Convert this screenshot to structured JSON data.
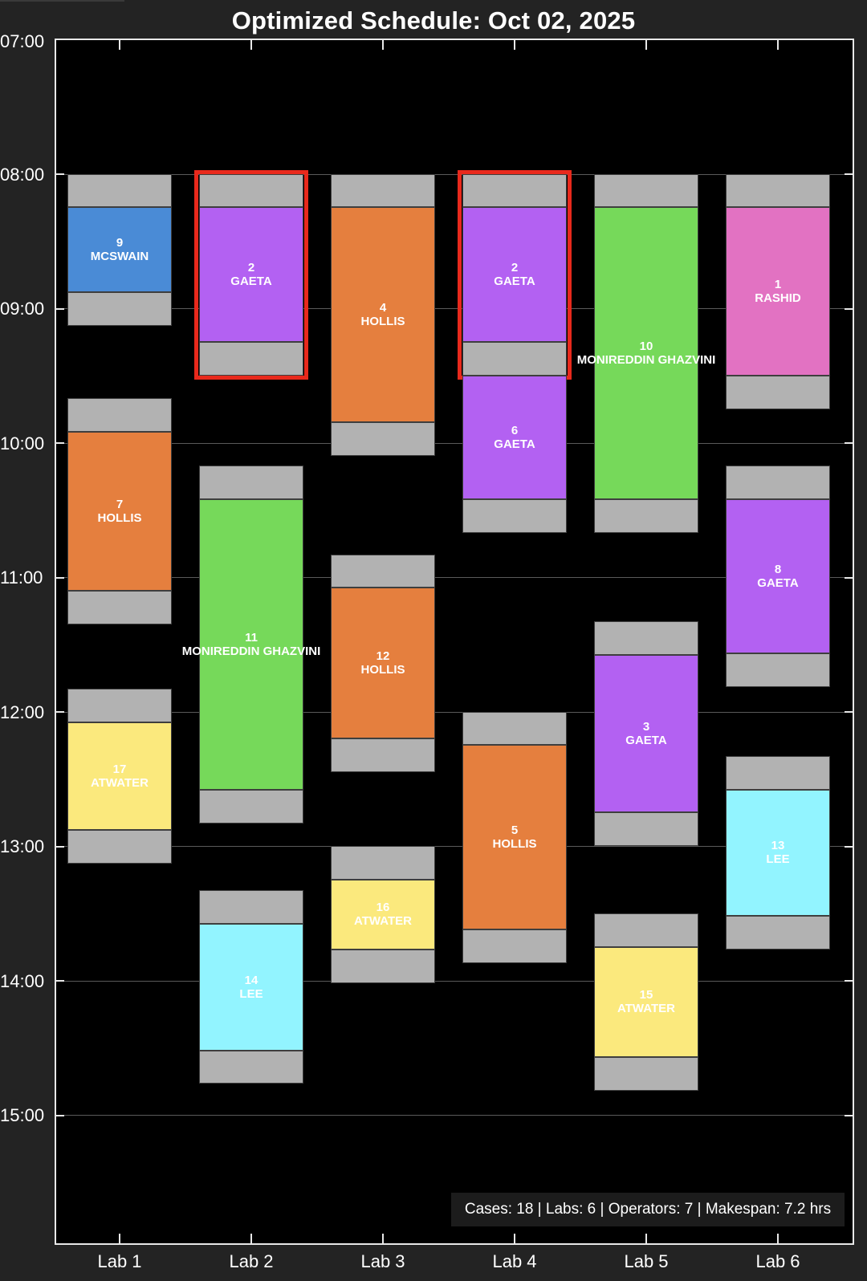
{
  "title": "Optimized Schedule: Oct 02, 2025",
  "stats_text": "Cases: 18 | Labs: 6 | Operators: 7 | Makespan: 7.2 hrs",
  "chart_data": {
    "type": "gantt",
    "y_axis": {
      "start_hour": 7.0,
      "end_hour": 15.8,
      "ticks": [
        "07:00",
        "08:00",
        "09:00",
        "10:00",
        "11:00",
        "12:00",
        "13:00",
        "14:00",
        "15:00"
      ]
    },
    "labs": [
      "Lab 1",
      "Lab 2",
      "Lab 3",
      "Lab 4",
      "Lab 5",
      "Lab 6"
    ],
    "colors": {
      "MCSWAIN": "#4a8bd6",
      "GAETA": "#b361f2",
      "HOLLIS": "#e57f3e",
      "MONIREDDIN GHAZVINI": "#76d95a",
      "RASHID": "#e272c2",
      "ATWATER": "#fbe97d",
      "LEE": "#92f4ff",
      "turnover": "#b2b2b2",
      "highlight": "#e8291c"
    },
    "cases": [
      {
        "id": "9",
        "operator": "MCSWAIN",
        "lab": 1,
        "setup_start": 8.0,
        "start": 8.25,
        "end": 8.88,
        "post_end": 9.13
      },
      {
        "id": "7",
        "operator": "HOLLIS",
        "lab": 1,
        "setup_start": 9.67,
        "start": 9.92,
        "end": 11.1,
        "post_end": 11.35
      },
      {
        "id": "17",
        "operator": "ATWATER",
        "lab": 1,
        "setup_start": 11.83,
        "start": 12.08,
        "end": 12.88,
        "post_end": 13.13
      },
      {
        "id": "2",
        "operator": "GAETA",
        "lab": 2,
        "setup_start": 8.0,
        "start": 8.25,
        "end": 9.25,
        "post_end": 9.5,
        "highlight": true
      },
      {
        "id": "11",
        "operator": "MONIREDDIN GHAZVINI",
        "lab": 2,
        "setup_start": 10.17,
        "start": 10.42,
        "end": 12.58,
        "post_end": 12.83
      },
      {
        "id": "14",
        "operator": "LEE",
        "lab": 2,
        "setup_start": 13.33,
        "start": 13.58,
        "end": 14.52,
        "post_end": 14.77
      },
      {
        "id": "4",
        "operator": "HOLLIS",
        "lab": 3,
        "setup_start": 8.0,
        "start": 8.25,
        "end": 9.85,
        "post_end": 10.1
      },
      {
        "id": "12",
        "operator": "HOLLIS",
        "lab": 3,
        "setup_start": 10.83,
        "start": 11.08,
        "end": 12.2,
        "post_end": 12.45
      },
      {
        "id": "16",
        "operator": "ATWATER",
        "lab": 3,
        "setup_start": 13.0,
        "start": 13.25,
        "end": 13.77,
        "post_end": 14.02
      },
      {
        "id": "2",
        "operator": "GAETA",
        "lab": 4,
        "setup_start": 8.0,
        "start": 8.25,
        "end": 9.25,
        "post_end": 9.5,
        "highlight": true
      },
      {
        "id": "6",
        "operator": "GAETA",
        "lab": 4,
        "setup_start": null,
        "start": 9.5,
        "end": 10.42,
        "post_end": 10.67
      },
      {
        "id": "5",
        "operator": "HOLLIS",
        "lab": 4,
        "setup_start": 12.0,
        "start": 12.25,
        "end": 13.62,
        "post_end": 13.87
      },
      {
        "id": "10",
        "operator": "MONIREDDIN GHAZVINI",
        "lab": 5,
        "setup_start": 8.0,
        "start": 8.25,
        "end": 10.42,
        "post_end": 10.67
      },
      {
        "id": "3",
        "operator": "GAETA",
        "lab": 5,
        "setup_start": 11.33,
        "start": 11.58,
        "end": 12.75,
        "post_end": 13.0
      },
      {
        "id": "15",
        "operator": "ATWATER",
        "lab": 5,
        "setup_start": 13.5,
        "start": 13.75,
        "end": 14.57,
        "post_end": 14.82
      },
      {
        "id": "1",
        "operator": "RASHID",
        "lab": 6,
        "setup_start": 8.0,
        "start": 8.25,
        "end": 9.5,
        "post_end": 9.75
      },
      {
        "id": "8",
        "operator": "GAETA",
        "lab": 6,
        "setup_start": 10.17,
        "start": 10.42,
        "end": 11.57,
        "post_end": 11.82
      },
      {
        "id": "13",
        "operator": "LEE",
        "lab": 6,
        "setup_start": 12.33,
        "start": 12.58,
        "end": 13.52,
        "post_end": 13.77
      }
    ]
  }
}
